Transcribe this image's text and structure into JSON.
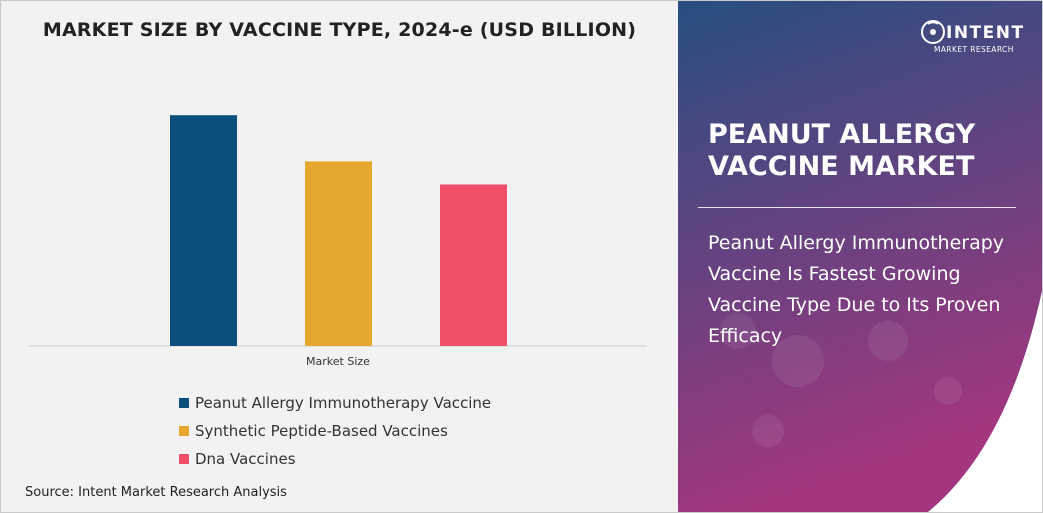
{
  "chart_data": {
    "type": "bar",
    "title": "MARKET SIZE BY VACCINE TYPE, 2024-e (USD BILLION)",
    "xlabel": "Market Size",
    "ylabel": "",
    "categories": [
      "Market Size"
    ],
    "series": [
      {
        "name": "Peanut Allergy Immunotherapy Vaccine",
        "values": [
          1.0
        ],
        "color": "#0b4f7c"
      },
      {
        "name": "Synthetic Peptide-Based Vaccines",
        "values": [
          0.8
        ],
        "color": "#e5a72e"
      },
      {
        "name": "Dna Vaccines",
        "values": [
          0.7
        ],
        "color": "#f04d68"
      }
    ],
    "ylim": [
      0,
      1.3
    ],
    "grid": false,
    "legend": "bottom"
  },
  "source": "Source: Intent Market Research Analysis",
  "logo": {
    "name": "INTENT",
    "subtitle": "MARKET RESEARCH"
  },
  "panel": {
    "title": "PEANUT ALLERGY VACCINE MARKET",
    "text": "Peanut Allergy Immunotherapy Vaccine Is Fastest Growing Vaccine Type Due to Its Proven Efficacy",
    "gradient_top": "#274f80",
    "gradient_bottom": "#a4367f"
  }
}
